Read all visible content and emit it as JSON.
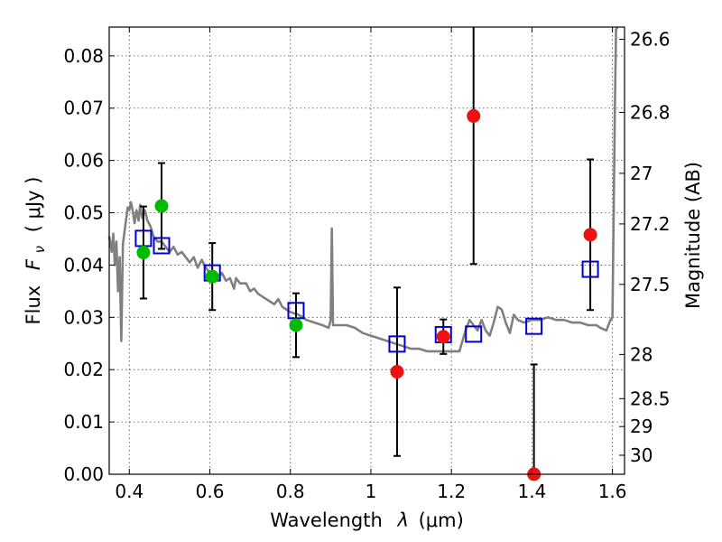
{
  "chart_data": {
    "type": "scatter",
    "title": "",
    "xlabel_text": "Wavelength",
    "xlabel_symbol": "λ",
    "xlabel_unit": "(μm)",
    "ylabel_text": "Flux",
    "ylabel_symbol": "F",
    "ylabel_sub": "ν",
    "ylabel_unit": "( μJy )",
    "y2label": "Magnitude (AB)",
    "xlim": [
      0.35,
      1.63
    ],
    "ylim": [
      0.0,
      0.0855
    ],
    "grid": true,
    "legend": "none",
    "x_ticks": [
      {
        "value": 0.4,
        "label": "0.4"
      },
      {
        "value": 0.6,
        "label": "0.6"
      },
      {
        "value": 0.8,
        "label": "0.8"
      },
      {
        "value": 1.0,
        "label": "1"
      },
      {
        "value": 1.2,
        "label": "1.2"
      },
      {
        "value": 1.4,
        "label": "1.4"
      },
      {
        "value": 1.6,
        "label": "1.6"
      }
    ],
    "y_ticks": [
      {
        "value": 0.0,
        "label": "0.00"
      },
      {
        "value": 0.01,
        "label": "0.01"
      },
      {
        "value": 0.02,
        "label": "0.02"
      },
      {
        "value": 0.03,
        "label": "0.03"
      },
      {
        "value": 0.04,
        "label": "0.04"
      },
      {
        "value": 0.05,
        "label": "0.05"
      },
      {
        "value": 0.06,
        "label": "0.06"
      },
      {
        "value": 0.07,
        "label": "0.07"
      },
      {
        "value": 0.08,
        "label": "0.08"
      }
    ],
    "mag_ticks": [
      {
        "mag": 26.6,
        "label": "26.6"
      },
      {
        "mag": 26.8,
        "label": "26.8"
      },
      {
        "mag": 27.0,
        "label": "27"
      },
      {
        "mag": 27.2,
        "label": "27.2"
      },
      {
        "mag": 27.5,
        "label": "27.5"
      },
      {
        "mag": 28.0,
        "label": "28"
      },
      {
        "mag": 28.5,
        "label": "28.5"
      },
      {
        "mag": 29.0,
        "label": "29"
      },
      {
        "mag": 30.0,
        "label": "30"
      }
    ],
    "series": [
      {
        "kind": "model-spectrum",
        "color": "#808080",
        "points": [
          [
            0.35,
            0.0455
          ],
          [
            0.356,
            0.0425
          ],
          [
            0.36,
            0.046
          ],
          [
            0.364,
            0.04
          ],
          [
            0.368,
            0.0445
          ],
          [
            0.372,
            0.035
          ],
          [
            0.376,
            0.0415
          ],
          [
            0.38,
            0.0255
          ],
          [
            0.384,
            0.044
          ],
          [
            0.39,
            0.0475
          ],
          [
            0.396,
            0.051
          ],
          [
            0.4,
            0.0505
          ],
          [
            0.404,
            0.052
          ],
          [
            0.408,
            0.0505
          ],
          [
            0.413,
            0.048
          ],
          [
            0.418,
            0.0505
          ],
          [
            0.423,
            0.0485
          ],
          [
            0.427,
            0.0515
          ],
          [
            0.432,
            0.049
          ],
          [
            0.438,
            0.0505
          ],
          [
            0.445,
            0.0485
          ],
          [
            0.452,
            0.0475
          ],
          [
            0.46,
            0.0455
          ],
          [
            0.47,
            0.0445
          ],
          [
            0.48,
            0.0445
          ],
          [
            0.49,
            0.0435
          ],
          [
            0.5,
            0.0425
          ],
          [
            0.51,
            0.0435
          ],
          [
            0.52,
            0.042
          ],
          [
            0.53,
            0.0425
          ],
          [
            0.54,
            0.0415
          ],
          [
            0.55,
            0.0405
          ],
          [
            0.56,
            0.0415
          ],
          [
            0.57,
            0.0395
          ],
          [
            0.58,
            0.041
          ],
          [
            0.59,
            0.0395
          ],
          [
            0.6,
            0.0385
          ],
          [
            0.61,
            0.0385
          ],
          [
            0.62,
            0.0375
          ],
          [
            0.63,
            0.0385
          ],
          [
            0.64,
            0.037
          ],
          [
            0.65,
            0.0375
          ],
          [
            0.66,
            0.0355
          ],
          [
            0.665,
            0.0375
          ],
          [
            0.675,
            0.0365
          ],
          [
            0.69,
            0.0365
          ],
          [
            0.7,
            0.035
          ],
          [
            0.71,
            0.0355
          ],
          [
            0.72,
            0.0345
          ],
          [
            0.73,
            0.034
          ],
          [
            0.74,
            0.0335
          ],
          [
            0.75,
            0.033
          ],
          [
            0.76,
            0.0325
          ],
          [
            0.77,
            0.0335
          ],
          [
            0.78,
            0.032
          ],
          [
            0.79,
            0.0315
          ],
          [
            0.8,
            0.031
          ],
          [
            0.82,
            0.0305
          ],
          [
            0.84,
            0.0295
          ],
          [
            0.86,
            0.029
          ],
          [
            0.88,
            0.0285
          ],
          [
            0.895,
            0.028
          ],
          [
            0.9,
            0.0295
          ],
          [
            0.903,
            0.047
          ],
          [
            0.906,
            0.0285
          ],
          [
            0.92,
            0.0285
          ],
          [
            0.94,
            0.0285
          ],
          [
            0.96,
            0.028
          ],
          [
            0.98,
            0.027
          ],
          [
            1.0,
            0.0265
          ],
          [
            1.02,
            0.026
          ],
          [
            1.04,
            0.0255
          ],
          [
            1.06,
            0.025
          ],
          [
            1.08,
            0.0245
          ],
          [
            1.1,
            0.024
          ],
          [
            1.12,
            0.024
          ],
          [
            1.14,
            0.0235
          ],
          [
            1.16,
            0.0235
          ],
          [
            1.18,
            0.0235
          ],
          [
            1.2,
            0.0235
          ],
          [
            1.22,
            0.0235
          ],
          [
            1.235,
            0.0275
          ],
          [
            1.245,
            0.0295
          ],
          [
            1.255,
            0.0285
          ],
          [
            1.265,
            0.0275
          ],
          [
            1.275,
            0.0295
          ],
          [
            1.285,
            0.0275
          ],
          [
            1.295,
            0.0265
          ],
          [
            1.305,
            0.029
          ],
          [
            1.315,
            0.032
          ],
          [
            1.325,
            0.0315
          ],
          [
            1.335,
            0.029
          ],
          [
            1.345,
            0.027
          ],
          [
            1.355,
            0.0305
          ],
          [
            1.365,
            0.0295
          ],
          [
            1.38,
            0.029
          ],
          [
            1.4,
            0.0295
          ],
          [
            1.42,
            0.0295
          ],
          [
            1.44,
            0.03
          ],
          [
            1.46,
            0.0295
          ],
          [
            1.48,
            0.0295
          ],
          [
            1.5,
            0.029
          ],
          [
            1.52,
            0.029
          ],
          [
            1.54,
            0.0285
          ],
          [
            1.56,
            0.0285
          ],
          [
            1.57,
            0.028
          ],
          [
            1.585,
            0.0275
          ],
          [
            1.595,
            0.0295
          ],
          [
            1.6,
            0.03
          ],
          [
            1.603,
            0.05
          ],
          [
            1.606,
            0.07
          ],
          [
            1.609,
            0.085
          ],
          [
            1.612,
            0.0855
          ]
        ]
      },
      {
        "kind": "model-photometry",
        "marker": "open-square",
        "color": "#0000cc",
        "points": [
          [
            0.435,
            0.0451
          ],
          [
            0.48,
            0.0437
          ],
          [
            0.606,
            0.0385
          ],
          [
            0.814,
            0.0313
          ],
          [
            1.065,
            0.0249
          ],
          [
            1.18,
            0.0267
          ],
          [
            1.255,
            0.0268
          ],
          [
            1.405,
            0.0283
          ],
          [
            1.545,
            0.0392
          ]
        ]
      },
      {
        "kind": "observed-green",
        "marker": "filled-circle",
        "color": "#00bb00",
        "points": [
          {
            "x": 0.435,
            "y": 0.0424,
            "err": 0.0088
          },
          {
            "x": 0.48,
            "y": 0.0513,
            "err": 0.0082
          },
          {
            "x": 0.606,
            "y": 0.0378,
            "err": 0.0064
          },
          {
            "x": 0.814,
            "y": 0.0285,
            "err": 0.0061
          }
        ]
      },
      {
        "kind": "observed-red",
        "marker": "filled-circle",
        "color": "#ee1111",
        "points": [
          {
            "x": 1.065,
            "y": 0.0196,
            "err": 0.0161
          },
          {
            "x": 1.18,
            "y": 0.0263,
            "err": 0.0033
          },
          {
            "x": 1.255,
            "y": 0.0685,
            "err": 0.0283
          },
          {
            "x": 1.405,
            "y": 0.0,
            "err": 0.021
          },
          {
            "x": 1.545,
            "y": 0.0458,
            "err": 0.0144
          }
        ]
      }
    ]
  }
}
